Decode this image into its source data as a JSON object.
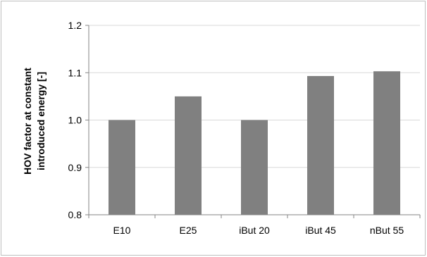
{
  "chart_data": {
    "type": "bar",
    "title": "",
    "xlabel": "",
    "ylabel_lines": [
      "HOV factor at constant",
      "introduced  energy [-]"
    ],
    "categories": [
      "E10",
      "E25",
      "iBut 20",
      "iBut 45",
      "nBut 55"
    ],
    "values": [
      1.0,
      1.05,
      1.0,
      1.093,
      1.103
    ],
    "ylim": [
      0.8,
      1.2
    ],
    "yticks": [
      0.8,
      0.9,
      1.0,
      1.1,
      1.2
    ],
    "ytick_labels": [
      "0.8",
      "0.9",
      "1.0",
      "1.1",
      "1.2"
    ],
    "grid": true,
    "bar_color": "#808080",
    "grid_color": "#d9d9d9",
    "axis_color": "#868686"
  }
}
